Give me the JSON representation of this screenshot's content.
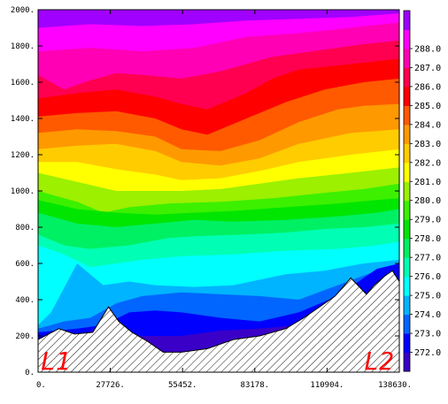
{
  "chart_data": {
    "type": "heatmap",
    "title": "",
    "xlabel": "",
    "ylabel": "",
    "xlim": [
      0,
      138630
    ],
    "ylim": [
      0,
      2000
    ],
    "x_ticks": [
      0,
      27726,
      55452,
      83178,
      110904,
      138630
    ],
    "x_tick_labels": [
      "0.",
      "27726.",
      "55452.",
      "83178.",
      "110904.",
      "138630."
    ],
    "y_ticks": [
      0,
      200,
      400,
      600,
      800,
      1000,
      1200,
      1400,
      1600,
      1800,
      2000
    ],
    "y_tick_labels": [
      "0.",
      "200.",
      "400.",
      "600.",
      "800.",
      "1000.",
      "1200.",
      "1400.",
      "1600.",
      "1800.",
      "2000."
    ],
    "colorbar": {
      "levels": [
        272.0,
        273.0,
        274.0,
        275.0,
        276.0,
        277.0,
        278.0,
        279.0,
        280.0,
        281.0,
        282.0,
        283.0,
        284.0,
        285.0,
        286.0,
        287.0,
        288.0
      ],
      "labels": [
        "272.0",
        "273.0",
        "274.0",
        "275.0",
        "276.0",
        "277.0",
        "278.0",
        "279.0",
        "280.0",
        "281.0",
        "282.0",
        "283.0",
        "284.0",
        "285.0",
        "286.0",
        "287.0",
        "288.0"
      ],
      "colors": [
        "#3a00c8",
        "#0000ff",
        "#0066ff",
        "#00b4ff",
        "#00ffff",
        "#00ffb4",
        "#00f064",
        "#00e600",
        "#3cf000",
        "#9cf000",
        "#ffff00",
        "#ffcc00",
        "#ff9900",
        "#ff5a00",
        "#ff0000",
        "#ff0050",
        "#ff00b4",
        "#ff00ff",
        "#a000ff"
      ]
    },
    "bands": [
      {
        "level": 288.0,
        "x": [
          0,
          20000,
          40000,
          60000,
          80000,
          100000,
          120000,
          138630
        ],
        "y": [
          1900,
          1920,
          1910,
          1920,
          1940,
          1950,
          1960,
          1980
        ]
      },
      {
        "level": 287.0,
        "x": [
          0,
          20000,
          40000,
          60000,
          80000,
          100000,
          120000,
          138630
        ],
        "y": [
          1770,
          1790,
          1770,
          1790,
          1850,
          1870,
          1900,
          1930
        ]
      },
      {
        "level": 286.0,
        "x": [
          0,
          10000,
          20000,
          30000,
          40000,
          55000,
          70000,
          90000,
          110000,
          125000,
          138630
        ],
        "y": [
          1640,
          1560,
          1610,
          1650,
          1640,
          1620,
          1660,
          1740,
          1780,
          1810,
          1830
        ]
      },
      {
        "level": 285.0,
        "x": [
          0,
          15000,
          30000,
          45000,
          55000,
          65000,
          80000,
          90000,
          100000,
          120000,
          138630
        ],
        "y": [
          1510,
          1540,
          1560,
          1520,
          1480,
          1450,
          1540,
          1620,
          1670,
          1700,
          1730
        ]
      },
      {
        "level": 284.0,
        "x": [
          0,
          15000,
          30000,
          45000,
          55000,
          65000,
          80000,
          95000,
          110000,
          125000,
          138630
        ],
        "y": [
          1410,
          1430,
          1440,
          1400,
          1340,
          1310,
          1400,
          1490,
          1560,
          1600,
          1620
        ]
      },
      {
        "level": 283.0,
        "x": [
          0,
          15000,
          30000,
          45000,
          55000,
          70000,
          85000,
          100000,
          115000,
          125000,
          138630
        ],
        "y": [
          1320,
          1340,
          1330,
          1300,
          1230,
          1220,
          1280,
          1380,
          1450,
          1470,
          1480
        ]
      },
      {
        "level": 282.0,
        "x": [
          0,
          15000,
          30000,
          45000,
          55000,
          70000,
          85000,
          100000,
          120000,
          138630
        ],
        "y": [
          1230,
          1250,
          1260,
          1220,
          1160,
          1140,
          1180,
          1260,
          1320,
          1340
        ]
      },
      {
        "level": 281.0,
        "x": [
          0,
          15000,
          30000,
          45000,
          55000,
          70000,
          85000,
          100000,
          120000,
          138630
        ],
        "y": [
          1160,
          1160,
          1120,
          1090,
          1060,
          1070,
          1110,
          1160,
          1200,
          1230
        ]
      },
      {
        "level": 280.0,
        "x": [
          0,
          15000,
          30000,
          45000,
          55000,
          70000,
          85000,
          100000,
          120000,
          138630
        ],
        "y": [
          1100,
          1050,
          1000,
          1000,
          1000,
          1010,
          1040,
          1070,
          1100,
          1130
        ]
      },
      {
        "level": 279.0,
        "x": [
          0,
          15000,
          25000,
          35000,
          50000,
          70000,
          90000,
          110000,
          125000,
          138630
        ],
        "y": [
          1000,
          940,
          880,
          910,
          930,
          940,
          960,
          990,
          1010,
          1040
        ]
      },
      {
        "level": 278.0,
        "x": [
          0,
          15000,
          30000,
          45000,
          60000,
          75000,
          95000,
          115000,
          130000,
          138630
        ],
        "y": [
          950,
          900,
          880,
          870,
          880,
          890,
          910,
          930,
          950,
          960
        ]
      },
      {
        "level": 277.0,
        "x": [
          0,
          15000,
          30000,
          45000,
          60000,
          75000,
          95000,
          115000,
          130000,
          138630
        ],
        "y": [
          880,
          820,
          800,
          820,
          840,
          830,
          840,
          860,
          880,
          900
        ]
      },
      {
        "level": 276.0,
        "x": [
          0,
          10000,
          20000,
          35000,
          50000,
          60000,
          80000,
          95000,
          110000,
          125000,
          138630
        ],
        "y": [
          760,
          700,
          680,
          700,
          740,
          750,
          760,
          770,
          790,
          800,
          820
        ]
      },
      {
        "level": 275.0,
        "x": [
          0,
          10000,
          20000,
          30000,
          40000,
          55000,
          75000,
          95000,
          115000,
          130000,
          138630
        ],
        "y": [
          700,
          650,
          580,
          600,
          620,
          640,
          650,
          670,
          680,
          700,
          720
        ]
      },
      {
        "level": 274.0,
        "x": [
          0,
          5000,
          15000,
          25000,
          35000,
          45000,
          60000,
          75000,
          95000,
          110000,
          125000,
          138630
        ],
        "y": [
          260,
          330,
          600,
          480,
          500,
          480,
          470,
          480,
          540,
          560,
          600,
          620
        ]
      },
      {
        "level": 273.0,
        "x": [
          0,
          10000,
          20000,
          30000,
          40000,
          55000,
          70000,
          85000,
          100000,
          115000,
          130000,
          138630
        ],
        "y": [
          240,
          280,
          300,
          380,
          420,
          440,
          430,
          420,
          400,
          480,
          560,
          590
        ]
      },
      {
        "level": 272.0,
        "x": [
          0,
          15000,
          25000,
          35000,
          45000,
          55000,
          70000,
          85000,
          100000,
          115000,
          130000,
          138630
        ],
        "y": [
          220,
          240,
          260,
          330,
          340,
          330,
          300,
          280,
          330,
          420,
          570,
          600
        ]
      },
      {
        "level": 271.0,
        "x": [
          20000,
          30000,
          40000,
          55000,
          70000,
          85000,
          100000
        ],
        "y": [
          230,
          230,
          200,
          200,
          230,
          240,
          260
        ]
      }
    ],
    "terrain": {
      "x": [
        0,
        8000,
        14000,
        21000,
        27000,
        31000,
        36000,
        42000,
        48000,
        55000,
        65000,
        75000,
        85000,
        95000,
        102000,
        108000,
        114000,
        120000,
        126000,
        129000,
        133000,
        136000,
        138630
      ],
      "y": [
        180,
        240,
        210,
        220,
        360,
        280,
        220,
        170,
        110,
        110,
        130,
        180,
        200,
        240,
        300,
        360,
        420,
        520,
        430,
        480,
        530,
        560,
        500
      ]
    },
    "annotations": [
      {
        "text": "L1",
        "position": "bottom-left",
        "color": "#ff0000"
      },
      {
        "text": "L2",
        "position": "bottom-right",
        "color": "#ff0000"
      }
    ]
  }
}
